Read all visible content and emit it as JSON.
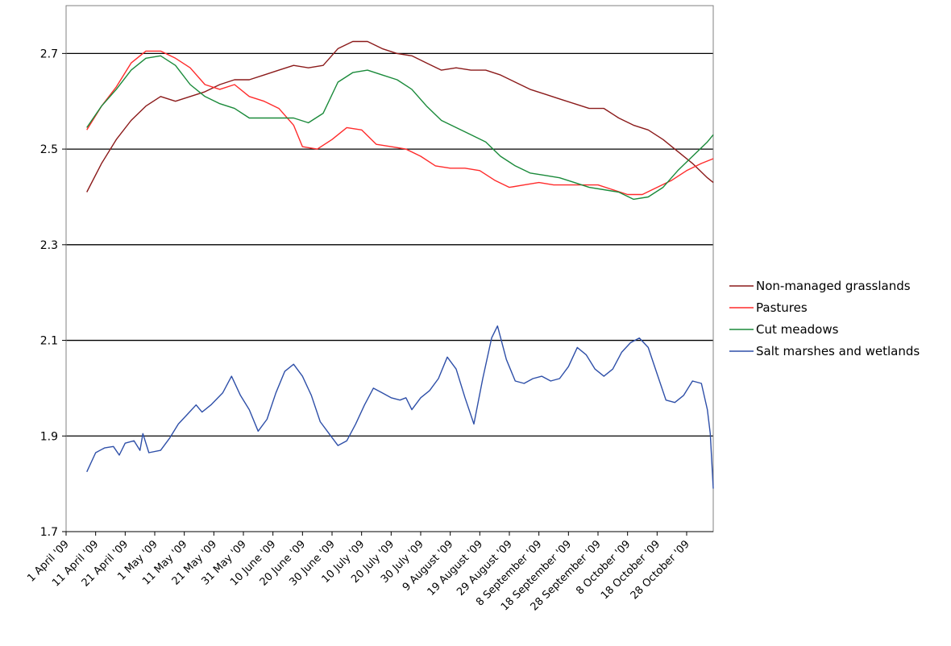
{
  "chart_data": {
    "type": "line",
    "title": "",
    "xlabel": "",
    "ylabel": "",
    "ylim": [
      1.7,
      2.8
    ],
    "yticks": [
      "1.7",
      "1.9",
      "2.1",
      "2.3",
      "2.5",
      "2.7"
    ],
    "grid": "horizontal major gridlines",
    "legend_position": "right",
    "x_tick_labels": [
      "1 April '09",
      "11 April '09",
      "21 April '09",
      "1 May '09",
      "11 May '09",
      "21 May '09",
      "31 May '09",
      "10 June '09",
      "20 June '09",
      "30 June '09",
      "10 July '09",
      "20 July '09",
      "30 July '09",
      "9 August '09",
      "19 August '09",
      "29 August '09",
      "8 September '09",
      "18 September '09",
      "28 September '09",
      "8 October '09",
      "18 October '09",
      "28 October '09"
    ],
    "x_range": [
      "1 April '09",
      "6 November '09"
    ],
    "series": [
      {
        "name": "Non-managed grasslands",
        "color": "#8b1a1a",
        "points": [
          [
            "8 April '09",
            2.41
          ],
          [
            "13 April '09",
            2.47
          ],
          [
            "18 April '09",
            2.52
          ],
          [
            "23 April '09",
            2.56
          ],
          [
            "28 April '09",
            2.59
          ],
          [
            "3 May '09",
            2.61
          ],
          [
            "8 May '09",
            2.6
          ],
          [
            "13 May '09",
            2.61
          ],
          [
            "18 May '09",
            2.62
          ],
          [
            "23 May '09",
            2.635
          ],
          [
            "28 May '09",
            2.645
          ],
          [
            "2 June '09",
            2.645
          ],
          [
            "7 June '09",
            2.655
          ],
          [
            "12 June '09",
            2.665
          ],
          [
            "17 June '09",
            2.675
          ],
          [
            "22 June '09",
            2.67
          ],
          [
            "27 June '09",
            2.675
          ],
          [
            "2 July '09",
            2.71
          ],
          [
            "7 July '09",
            2.725
          ],
          [
            "12 July '09",
            2.725
          ],
          [
            "17 July '09",
            2.71
          ],
          [
            "22 July '09",
            2.7
          ],
          [
            "27 July '09",
            2.695
          ],
          [
            "1 August '09",
            2.68
          ],
          [
            "6 August '09",
            2.665
          ],
          [
            "11 August '09",
            2.67
          ],
          [
            "16 August '09",
            2.665
          ],
          [
            "21 August '09",
            2.665
          ],
          [
            "26 August '09",
            2.655
          ],
          [
            "31 August '09",
            2.64
          ],
          [
            "5 September '09",
            2.625
          ],
          [
            "10 September '09",
            2.615
          ],
          [
            "15 September '09",
            2.605
          ],
          [
            "20 September '09",
            2.595
          ],
          [
            "25 September '09",
            2.585
          ],
          [
            "30 September '09",
            2.585
          ],
          [
            "5 October '09",
            2.565
          ],
          [
            "10 October '09",
            2.55
          ],
          [
            "15 October '09",
            2.54
          ],
          [
            "20 October '09",
            2.52
          ],
          [
            "25 October '09",
            2.495
          ],
          [
            "30 October '09",
            2.47
          ],
          [
            "4 November '09",
            2.44
          ],
          [
            "6 November '09",
            2.43
          ]
        ]
      },
      {
        "name": "Pastures",
        "color": "#ff2b2b",
        "points": [
          [
            "8 April '09",
            2.54
          ],
          [
            "13 April '09",
            2.59
          ],
          [
            "18 April '09",
            2.63
          ],
          [
            "23 April '09",
            2.68
          ],
          [
            "28 April '09",
            2.705
          ],
          [
            "3 May '09",
            2.705
          ],
          [
            "8 May '09",
            2.69
          ],
          [
            "13 May '09",
            2.67
          ],
          [
            "18 May '09",
            2.635
          ],
          [
            "23 May '09",
            2.625
          ],
          [
            "28 May '09",
            2.635
          ],
          [
            "2 June '09",
            2.61
          ],
          [
            "7 June '09",
            2.6
          ],
          [
            "12 June '09",
            2.585
          ],
          [
            "17 June '09",
            2.55
          ],
          [
            "20 June '09",
            2.505
          ],
          [
            "25 June '09",
            2.5
          ],
          [
            "30 June '09",
            2.52
          ],
          [
            "5 July '09",
            2.545
          ],
          [
            "10 July '09",
            2.54
          ],
          [
            "15 July '09",
            2.51
          ],
          [
            "20 July '09",
            2.505
          ],
          [
            "25 July '09",
            2.5
          ],
          [
            "30 July '09",
            2.485
          ],
          [
            "4 August '09",
            2.465
          ],
          [
            "9 August '09",
            2.46
          ],
          [
            "14 August '09",
            2.46
          ],
          [
            "19 August '09",
            2.455
          ],
          [
            "24 August '09",
            2.435
          ],
          [
            "29 August '09",
            2.42
          ],
          [
            "3 September '09",
            2.425
          ],
          [
            "8 September '09",
            2.43
          ],
          [
            "13 September '09",
            2.425
          ],
          [
            "18 September '09",
            2.425
          ],
          [
            "23 September '09",
            2.425
          ],
          [
            "28 September '09",
            2.425
          ],
          [
            "3 October '09",
            2.415
          ],
          [
            "8 October '09",
            2.405
          ],
          [
            "13 October '09",
            2.405
          ],
          [
            "18 October '09",
            2.42
          ],
          [
            "23 October '09",
            2.435
          ],
          [
            "28 October '09",
            2.455
          ],
          [
            "2 November '09",
            2.47
          ],
          [
            "6 November '09",
            2.48
          ]
        ]
      },
      {
        "name": "Cut meadows",
        "color": "#1a8a3a",
        "points": [
          [
            "8 April '09",
            2.545
          ],
          [
            "13 April '09",
            2.59
          ],
          [
            "18 April '09",
            2.625
          ],
          [
            "23 April '09",
            2.665
          ],
          [
            "28 April '09",
            2.69
          ],
          [
            "3 May '09",
            2.695
          ],
          [
            "8 May '09",
            2.675
          ],
          [
            "13 May '09",
            2.635
          ],
          [
            "18 May '09",
            2.61
          ],
          [
            "23 May '09",
            2.595
          ],
          [
            "28 May '09",
            2.585
          ],
          [
            "2 June '09",
            2.565
          ],
          [
            "7 June '09",
            2.565
          ],
          [
            "12 June '09",
            2.565
          ],
          [
            "17 June '09",
            2.565
          ],
          [
            "22 June '09",
            2.555
          ],
          [
            "27 June '09",
            2.575
          ],
          [
            "2 July '09",
            2.64
          ],
          [
            "7 July '09",
            2.66
          ],
          [
            "12 July '09",
            2.665
          ],
          [
            "17 July '09",
            2.655
          ],
          [
            "22 July '09",
            2.645
          ],
          [
            "27 July '09",
            2.625
          ],
          [
            "1 August '09",
            2.59
          ],
          [
            "6 August '09",
            2.56
          ],
          [
            "11 August '09",
            2.545
          ],
          [
            "16 August '09",
            2.53
          ],
          [
            "21 August '09",
            2.515
          ],
          [
            "26 August '09",
            2.485
          ],
          [
            "31 August '09",
            2.465
          ],
          [
            "5 September '09",
            2.45
          ],
          [
            "10 September '09",
            2.445
          ],
          [
            "15 September '09",
            2.44
          ],
          [
            "20 September '09",
            2.43
          ],
          [
            "25 September '09",
            2.42
          ],
          [
            "30 September '09",
            2.415
          ],
          [
            "5 October '09",
            2.41
          ],
          [
            "10 October '09",
            2.395
          ],
          [
            "15 October '09",
            2.4
          ],
          [
            "20 October '09",
            2.42
          ],
          [
            "25 October '09",
            2.455
          ],
          [
            "30 October '09",
            2.485
          ],
          [
            "4 November '09",
            2.515
          ],
          [
            "6 November '09",
            2.53
          ]
        ]
      },
      {
        "name": "Salt marshes and wetlands",
        "color": "#2e4fa8",
        "points": [
          [
            "8 April '09",
            1.825
          ],
          [
            "11 April '09",
            1.865
          ],
          [
            "14 April '09",
            1.875
          ],
          [
            "17 April '09",
            1.878
          ],
          [
            "19 April '09",
            1.86
          ],
          [
            "21 April '09",
            1.885
          ],
          [
            "24 April '09",
            1.89
          ],
          [
            "26 April '09",
            1.87
          ],
          [
            "27 April '09",
            1.905
          ],
          [
            "29 April '09",
            1.865
          ],
          [
            "3 May '09",
            1.87
          ],
          [
            "6 May '09",
            1.895
          ],
          [
            "9 May '09",
            1.925
          ],
          [
            "12 May '09",
            1.945
          ],
          [
            "15 May '09",
            1.965
          ],
          [
            "17 May '09",
            1.95
          ],
          [
            "20 May '09",
            1.965
          ],
          [
            "24 May '09",
            1.99
          ],
          [
            "27 May '09",
            2.025
          ],
          [
            "30 May '09",
            1.985
          ],
          [
            "2 June '09",
            1.955
          ],
          [
            "5 June '09",
            1.91
          ],
          [
            "8 June '09",
            1.935
          ],
          [
            "11 June '09",
            1.99
          ],
          [
            "14 June '09",
            2.035
          ],
          [
            "17 June '09",
            2.05
          ],
          [
            "20 June '09",
            2.025
          ],
          [
            "23 June '09",
            1.985
          ],
          [
            "26 June '09",
            1.93
          ],
          [
            "29 June '09",
            1.905
          ],
          [
            "2 July '09",
            1.88
          ],
          [
            "5 July '09",
            1.89
          ],
          [
            "8 July '09",
            1.925
          ],
          [
            "11 July '09",
            1.965
          ],
          [
            "14 July '09",
            2.0
          ],
          [
            "17 July '09",
            1.99
          ],
          [
            "20 July '09",
            1.98
          ],
          [
            "23 July '09",
            1.975
          ],
          [
            "25 July '09",
            1.98
          ],
          [
            "27 July '09",
            1.955
          ],
          [
            "30 July '09",
            1.98
          ],
          [
            "2 August '09",
            1.995
          ],
          [
            "5 August '09",
            2.02
          ],
          [
            "8 August '09",
            2.065
          ],
          [
            "11 August '09",
            2.04
          ],
          [
            "14 August '09",
            1.98
          ],
          [
            "17 August '09",
            1.925
          ],
          [
            "20 August '09",
            2.02
          ],
          [
            "23 August '09",
            2.105
          ],
          [
            "25 August '09",
            2.13
          ],
          [
            "28 August '09",
            2.06
          ],
          [
            "31 August '09",
            2.015
          ],
          [
            "3 September '09",
            2.01
          ],
          [
            "6 September '09",
            2.02
          ],
          [
            "9 September '09",
            2.025
          ],
          [
            "12 September '09",
            2.015
          ],
          [
            "15 September '09",
            2.02
          ],
          [
            "18 September '09",
            2.045
          ],
          [
            "21 September '09",
            2.085
          ],
          [
            "24 September '09",
            2.07
          ],
          [
            "27 September '09",
            2.04
          ],
          [
            "30 September '09",
            2.025
          ],
          [
            "3 October '09",
            2.04
          ],
          [
            "6 October '09",
            2.075
          ],
          [
            "9 October '09",
            2.095
          ],
          [
            "12 October '09",
            2.105
          ],
          [
            "15 October '09",
            2.085
          ],
          [
            "18 October '09",
            2.03
          ],
          [
            "21 October '09",
            1.975
          ],
          [
            "24 October '09",
            1.97
          ],
          [
            "27 October '09",
            1.985
          ],
          [
            "30 October '09",
            2.015
          ],
          [
            "2 November '09",
            2.01
          ],
          [
            "4 November '09",
            1.955
          ],
          [
            "5 November '09",
            1.905
          ]
        ],
        "points_continued": [
          [
            "5 November '09",
            1.905
          ],
          [
            "6 November '09",
            1.79
          ]
        ]
      }
    ]
  }
}
